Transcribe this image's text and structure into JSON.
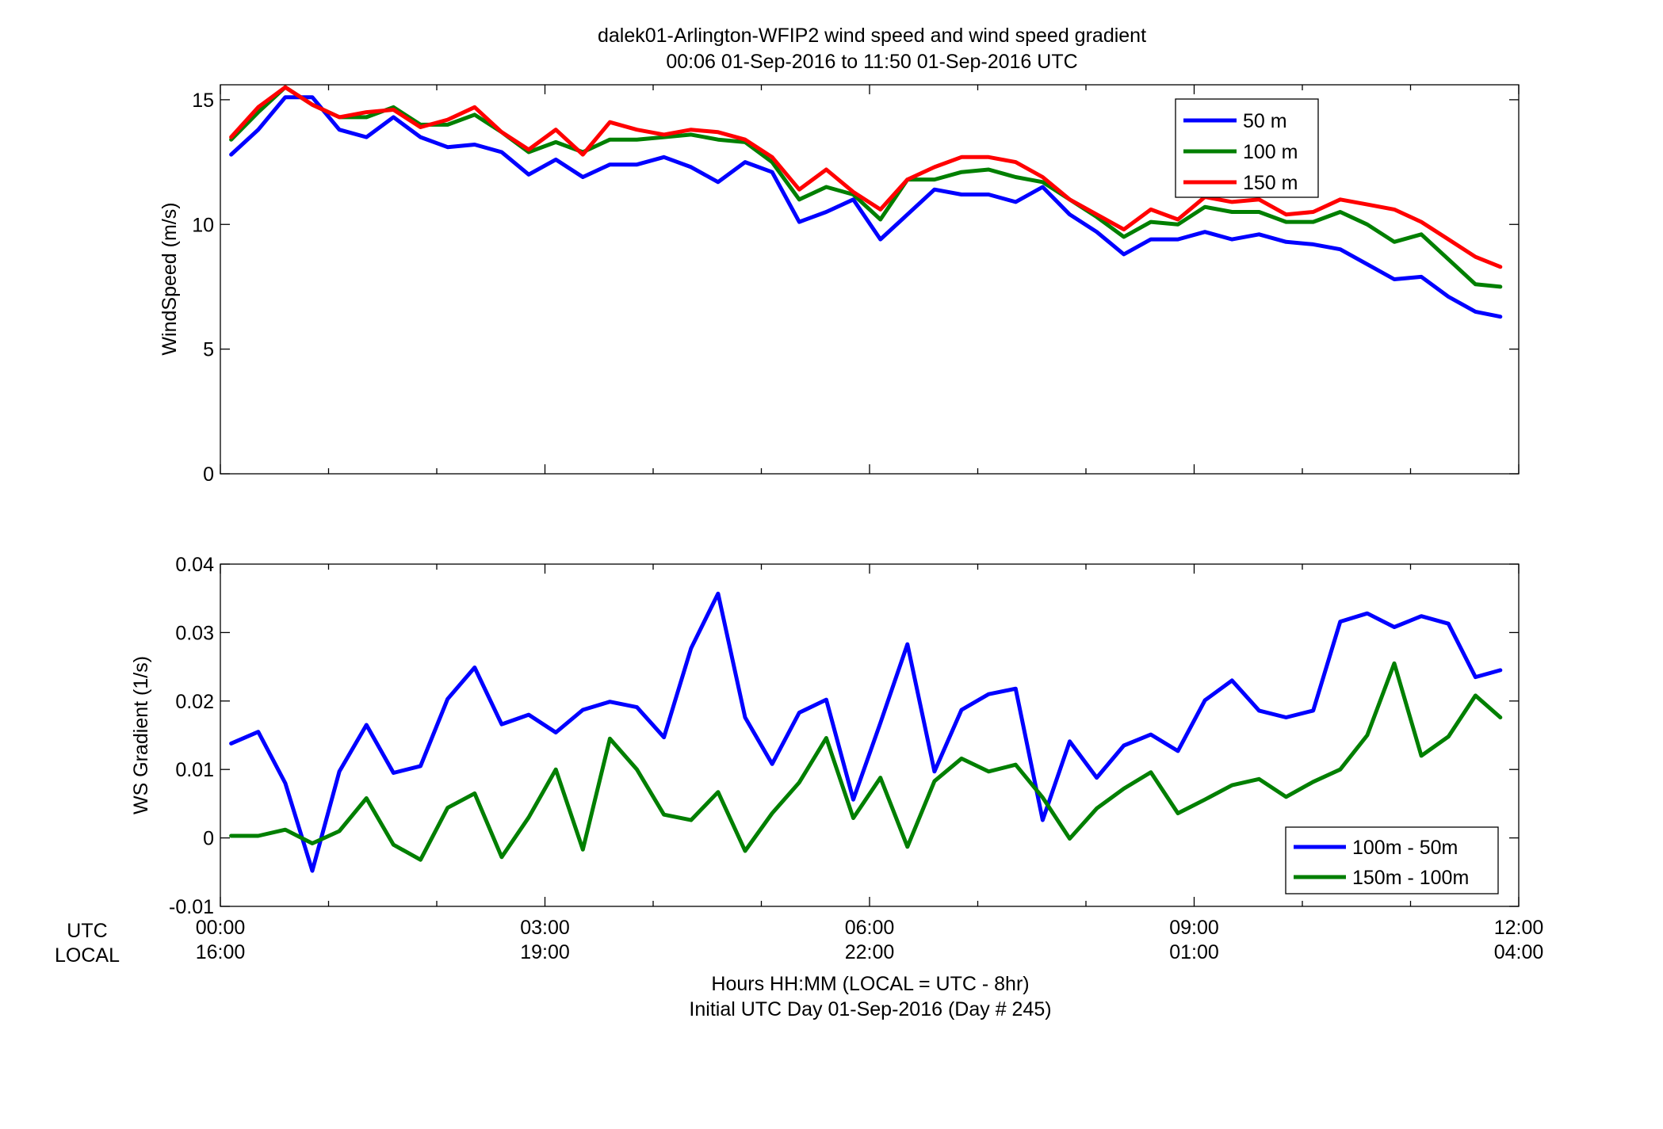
{
  "figure": {
    "title_line1": "dalek01-Arlington-WFIP2  wind speed and wind speed gradient",
    "title_line2": "00:06 01-Sep-2016 to 11:50 01-Sep-2016  UTC",
    "row_label_utc": "UTC",
    "row_label_local": "LOCAL",
    "xlabel_line1": "Hours HH:MM  (LOCAL = UTC - 8hr)",
    "xlabel_line2": "Initial UTC Day 01-Sep-2016 (Day # 245)"
  },
  "chart_data": [
    {
      "type": "line",
      "title": "",
      "ylabel": "WindSpeed (m/s)",
      "xlabel": "",
      "xlim": [
        0,
        12
      ],
      "ylim": [
        0,
        15.6
      ],
      "yticks": [
        0,
        5,
        10,
        15
      ],
      "xticks": [
        0,
        3,
        6,
        9,
        12
      ],
      "xtick_labels_utc": [
        "00:00",
        "03:00",
        "06:00",
        "09:00",
        "12:00"
      ],
      "xtick_labels_local": [
        "16:00",
        "19:00",
        "22:00",
        "01:00",
        "04:00"
      ],
      "grid": false,
      "legend_position": "top-right",
      "x": [
        0.1,
        0.35,
        0.6,
        0.85,
        1.1,
        1.35,
        1.6,
        1.85,
        2.1,
        2.35,
        2.6,
        2.85,
        3.1,
        3.35,
        3.6,
        3.85,
        4.1,
        4.35,
        4.6,
        4.85,
        5.1,
        5.35,
        5.6,
        5.85,
        6.1,
        6.35,
        6.6,
        6.85,
        7.1,
        7.35,
        7.6,
        7.85,
        8.1,
        8.35,
        8.6,
        8.85,
        9.1,
        9.35,
        9.6,
        9.85,
        10.1,
        10.35,
        10.6,
        10.85,
        11.1,
        11.35,
        11.6,
        11.83
      ],
      "series": [
        {
          "name": "50 m",
          "color": "#0000ff",
          "values": [
            12.8,
            13.8,
            15.1,
            15.1,
            13.8,
            13.5,
            14.3,
            13.5,
            13.1,
            13.2,
            12.9,
            12.0,
            12.6,
            11.9,
            12.4,
            12.4,
            12.7,
            12.3,
            11.7,
            12.5,
            12.1,
            10.1,
            10.5,
            11.0,
            9.4,
            10.4,
            11.4,
            11.2,
            11.2,
            10.9,
            11.5,
            10.4,
            9.7,
            8.8,
            9.4,
            9.4,
            9.7,
            9.4,
            9.6,
            9.3,
            9.2,
            9.0,
            8.4,
            7.8,
            7.9,
            7.1,
            6.5,
            6.3
          ]
        },
        {
          "name": "100 m",
          "color": "#007f00",
          "values": [
            13.4,
            14.5,
            15.5,
            14.8,
            14.3,
            14.3,
            14.7,
            14.0,
            14.0,
            14.4,
            13.7,
            12.9,
            13.3,
            12.9,
            13.4,
            13.4,
            13.5,
            13.6,
            13.4,
            13.3,
            12.5,
            11.0,
            11.5,
            11.2,
            10.2,
            11.8,
            11.8,
            12.1,
            12.2,
            11.9,
            11.7,
            11.0,
            10.3,
            9.5,
            10.1,
            10.0,
            10.7,
            10.5,
            10.5,
            10.1,
            10.1,
            10.5,
            10.0,
            9.3,
            9.6,
            8.6,
            7.6,
            7.5
          ]
        },
        {
          "name": "150 m",
          "color": "#ff0000",
          "values": [
            13.5,
            14.7,
            15.5,
            14.8,
            14.3,
            14.5,
            14.6,
            13.9,
            14.2,
            14.7,
            13.7,
            13.0,
            13.8,
            12.8,
            14.1,
            13.8,
            13.6,
            13.8,
            13.7,
            13.4,
            12.7,
            11.4,
            12.2,
            11.3,
            10.6,
            11.8,
            12.3,
            12.7,
            12.7,
            12.5,
            11.9,
            11.0,
            10.4,
            9.8,
            10.6,
            10.2,
            11.1,
            10.9,
            11.0,
            10.4,
            10.5,
            11.0,
            10.8,
            10.6,
            10.1,
            9.4,
            8.7,
            8.3
          ]
        }
      ]
    },
    {
      "type": "line",
      "title": "",
      "ylabel": "WS Gradient (1/s)",
      "xlabel": "",
      "xlim": [
        0,
        12
      ],
      "ylim": [
        -0.01,
        0.04
      ],
      "yticks": [
        -0.01,
        0,
        0.01,
        0.02,
        0.03,
        0.04
      ],
      "ytick_labels": [
        "-0.01",
        "0",
        "0.01",
        "0.02",
        "0.03",
        "0.04"
      ],
      "xticks": [
        0,
        3,
        6,
        9,
        12
      ],
      "grid": false,
      "legend_position": "bottom-right",
      "x": [
        0.1,
        0.35,
        0.6,
        0.85,
        1.1,
        1.35,
        1.6,
        1.85,
        2.1,
        2.35,
        2.6,
        2.85,
        3.1,
        3.35,
        3.6,
        3.85,
        4.1,
        4.35,
        4.6,
        4.85,
        5.1,
        5.35,
        5.6,
        5.85,
        6.1,
        6.35,
        6.6,
        6.85,
        7.1,
        7.35,
        7.6,
        7.85,
        8.1,
        8.35,
        8.6,
        8.85,
        9.1,
        9.35,
        9.6,
        9.85,
        10.1,
        10.35,
        10.6,
        10.85,
        11.1,
        11.35,
        11.6,
        11.83
      ],
      "series": [
        {
          "name": "100m - 50m",
          "color": "#0000ff",
          "values": [
            0.0138,
            0.0155,
            0.008,
            -0.0048,
            0.0097,
            0.0165,
            0.0095,
            0.0105,
            0.0203,
            0.0249,
            0.0166,
            0.018,
            0.0154,
            0.0187,
            0.0199,
            0.0191,
            0.0147,
            0.0277,
            0.0357,
            0.0176,
            0.0108,
            0.0183,
            0.0202,
            0.0056,
            0.0168,
            0.0283,
            0.0097,
            0.0187,
            0.021,
            0.0218,
            0.0026,
            0.0141,
            0.0088,
            0.0135,
            0.0151,
            0.0127,
            0.0201,
            0.023,
            0.0186,
            0.0176,
            0.0186,
            0.0316,
            0.0328,
            0.0308,
            0.0324,
            0.0313,
            0.0235,
            0.0245
          ]
        },
        {
          "name": "150m - 100m",
          "color": "#007f00",
          "values": [
            0.0003,
            0.0003,
            0.0012,
            -0.0008,
            0.001,
            0.0058,
            -0.001,
            -0.0032,
            0.0044,
            0.0065,
            -0.0028,
            0.003,
            0.01,
            -0.0017,
            0.0145,
            0.01,
            0.0034,
            0.0026,
            0.0067,
            -0.0019,
            0.0036,
            0.0081,
            0.0146,
            0.0029,
            0.0088,
            -0.0013,
            0.0083,
            0.0116,
            0.0097,
            0.0107,
            0.0059,
            -0.0001,
            0.0043,
            0.0072,
            0.0096,
            0.0036,
            0.0056,
            0.0077,
            0.0086,
            0.006,
            0.0082,
            0.01,
            0.015,
            0.0255,
            0.012,
            0.0148,
            0.0208,
            0.0176
          ]
        }
      ]
    }
  ]
}
